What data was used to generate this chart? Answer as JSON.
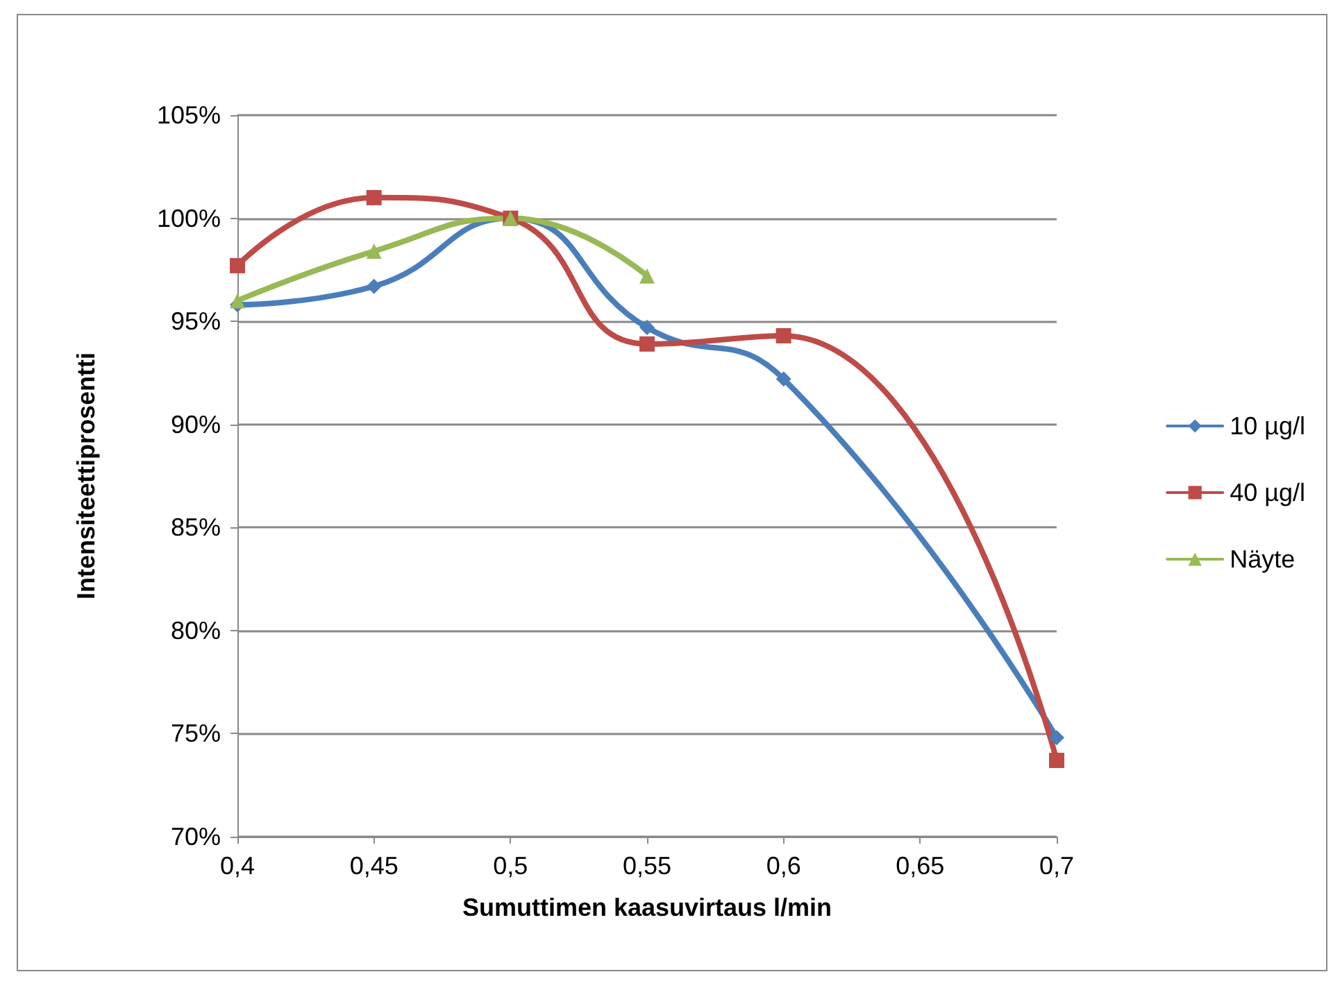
{
  "chart_data": {
    "type": "line",
    "xlabel": "Sumuttimen kaasuvirtaus l/min",
    "ylabel": "Intensiteettiprosentti",
    "x": [
      0.4,
      0.45,
      0.5,
      0.55,
      0.6,
      0.7
    ],
    "series": [
      {
        "name": "10 µg/l",
        "color": "#4a7ebb",
        "marker": "diamond",
        "values": [
          95.8,
          96.7,
          100,
          94.7,
          92.2,
          74.8
        ]
      },
      {
        "name": "40 µg/l",
        "color": "#be4b48",
        "marker": "square",
        "values": [
          97.7,
          101.0,
          100,
          93.9,
          94.3,
          73.7
        ]
      },
      {
        "name": "Näyte",
        "color": "#98b954",
        "marker": "triangle",
        "values": [
          96.0,
          98.4,
          100,
          97.2,
          null,
          null
        ]
      }
    ],
    "xlim": [
      0.4,
      0.7
    ],
    "xticks": [
      {
        "value": 0.4,
        "label": "0,4"
      },
      {
        "value": 0.45,
        "label": "0,45"
      },
      {
        "value": 0.5,
        "label": "0,5"
      },
      {
        "value": 0.55,
        "label": "0,55"
      },
      {
        "value": 0.6,
        "label": "0,6"
      },
      {
        "value": 0.65,
        "label": "0,65"
      },
      {
        "value": 0.7,
        "label": "0,7"
      }
    ],
    "ylim": [
      70,
      105
    ],
    "yticks": [
      {
        "value": 70,
        "label": "70%"
      },
      {
        "value": 75,
        "label": "75%"
      },
      {
        "value": 80,
        "label": "80%"
      },
      {
        "value": 85,
        "label": "85%"
      },
      {
        "value": 90,
        "label": "90%"
      },
      {
        "value": 95,
        "label": "95%"
      },
      {
        "value": 100,
        "label": "100%"
      },
      {
        "value": 105,
        "label": "105%"
      }
    ],
    "grid": "y",
    "legend": "right",
    "line_style": "solid"
  }
}
